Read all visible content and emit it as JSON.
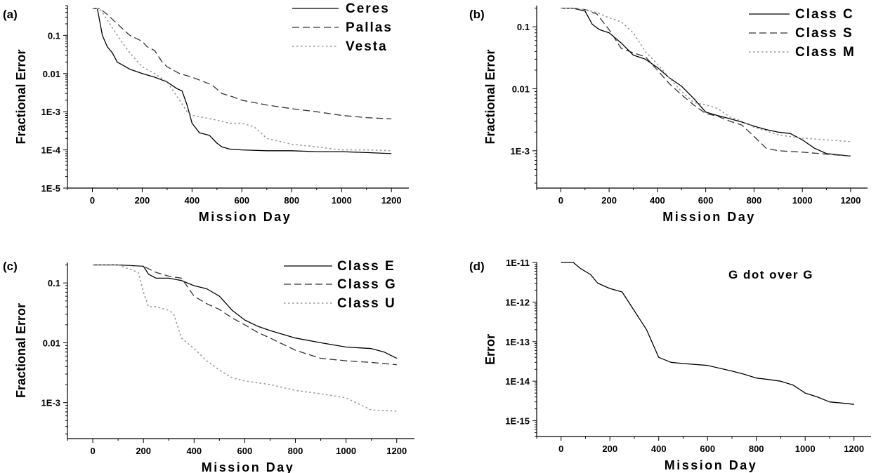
{
  "chart_data": [
    {
      "type": "line",
      "panel_label": "(a)",
      "xlabel": "Mission Day",
      "ylabel": "Fractional Error",
      "xlim": [
        -100,
        1270
      ],
      "ylim": [
        1e-05,
        0.6
      ],
      "yscale": "log",
      "xticks": [
        0,
        200,
        400,
        600,
        800,
        1000,
        1200
      ],
      "xtick_labels": [
        "0",
        "200",
        "400",
        "600",
        "800",
        "1000",
        "1200"
      ],
      "yticks": [
        0.1,
        0.01,
        0.001,
        0.0001,
        1e-05
      ],
      "ytick_labels": [
        "0.1",
        "0.01",
        "1E-3",
        "1E-4",
        "1E-5"
      ],
      "legend_position": "top-right",
      "series": [
        {
          "name": "Ceres",
          "style": "solid",
          "color": "#000000",
          "x": [
            0,
            20,
            40,
            60,
            80,
            100,
            150,
            200,
            250,
            300,
            340,
            360,
            380,
            400,
            430,
            470,
            500,
            520,
            550,
            600,
            700,
            800,
            900,
            1000,
            1100,
            1200
          ],
          "y": [
            0.5,
            0.5,
            0.1,
            0.05,
            0.035,
            0.02,
            0.013,
            0.01,
            0.008,
            0.006,
            0.004,
            0.0035,
            0.0015,
            0.0005,
            0.00028,
            0.00024,
            0.00015,
            0.00012,
            0.000105,
            0.0001,
            9.5e-05,
            9.5e-05,
            9e-05,
            9e-05,
            8.5e-05,
            8e-05
          ]
        },
        {
          "name": "Pallas",
          "style": "dashed",
          "color": "#333333",
          "x": [
            0,
            30,
            60,
            100,
            150,
            200,
            220,
            250,
            280,
            300,
            350,
            400,
            450,
            480,
            520,
            560,
            600,
            700,
            800,
            900,
            1000,
            1100,
            1200
          ],
          "y": [
            0.5,
            0.5,
            0.35,
            0.2,
            0.1,
            0.07,
            0.05,
            0.04,
            0.02,
            0.015,
            0.01,
            0.008,
            0.006,
            0.005,
            0.003,
            0.0025,
            0.002,
            0.0015,
            0.0012,
            0.001,
            0.0008,
            0.0007,
            0.00065
          ]
        },
        {
          "name": "Vesta",
          "style": "dotted",
          "color": "#999999",
          "x": [
            0,
            30,
            60,
            100,
            150,
            200,
            250,
            300,
            350,
            380,
            400,
            450,
            500,
            550,
            600,
            650,
            700,
            800,
            900,
            1000,
            1100,
            1200
          ],
          "y": [
            0.5,
            0.5,
            0.25,
            0.1,
            0.035,
            0.015,
            0.01,
            0.006,
            0.002,
            0.001,
            0.0008,
            0.0007,
            0.0006,
            0.0005,
            0.0005,
            0.0004,
            0.0002,
            0.00014,
            0.00012,
            0.0001,
            0.0001,
            9.5e-05
          ]
        }
      ]
    },
    {
      "type": "line",
      "panel_label": "(b)",
      "xlabel": "Mission Day",
      "ylabel": "Fractional Error",
      "xlim": [
        -100,
        1270
      ],
      "ylim": [
        0.00025,
        0.22
      ],
      "yscale": "log",
      "xticks": [
        0,
        200,
        400,
        600,
        800,
        1000,
        1200
      ],
      "xtick_labels": [
        "0",
        "200",
        "400",
        "600",
        "800",
        "1000",
        "1200"
      ],
      "yticks": [
        0.1,
        0.01,
        0.001
      ],
      "ytick_labels": [
        "0.1",
        "0.01",
        "1E-3"
      ],
      "legend_position": "top-right",
      "series": [
        {
          "name": "Class C",
          "style": "solid",
          "color": "#000000",
          "x": [
            0,
            50,
            100,
            130,
            160,
            200,
            250,
            300,
            350,
            400,
            450,
            500,
            550,
            600,
            650,
            700,
            750,
            800,
            850,
            900,
            950,
            1000,
            1050,
            1100,
            1150,
            1200
          ],
          "y": [
            0.2,
            0.2,
            0.18,
            0.11,
            0.09,
            0.08,
            0.055,
            0.035,
            0.03,
            0.022,
            0.015,
            0.011,
            0.007,
            0.0042,
            0.0037,
            0.0033,
            0.0029,
            0.0025,
            0.0022,
            0.002,
            0.0019,
            0.0015,
            0.0011,
            0.0009,
            0.00086,
            0.00082
          ]
        },
        {
          "name": "Class S",
          "style": "dashed",
          "color": "#333333",
          "x": [
            0,
            50,
            100,
            150,
            200,
            250,
            300,
            350,
            400,
            450,
            500,
            550,
            600,
            650,
            700,
            750,
            800,
            850,
            900,
            1000,
            1100,
            1200
          ],
          "y": [
            0.2,
            0.2,
            0.19,
            0.16,
            0.09,
            0.045,
            0.038,
            0.033,
            0.02,
            0.012,
            0.008,
            0.0055,
            0.004,
            0.0036,
            0.003,
            0.0026,
            0.0017,
            0.0011,
            0.001,
            0.00095,
            0.00088,
            0.00082
          ]
        },
        {
          "name": "Class M",
          "style": "dotted",
          "color": "#999999",
          "x": [
            0,
            50,
            100,
            150,
            200,
            250,
            300,
            350,
            400,
            450,
            500,
            550,
            600,
            650,
            700,
            750,
            800,
            850,
            900,
            1000,
            1100,
            1200
          ],
          "y": [
            0.2,
            0.2,
            0.19,
            0.17,
            0.14,
            0.12,
            0.08,
            0.04,
            0.025,
            0.015,
            0.009,
            0.006,
            0.0055,
            0.0048,
            0.0035,
            0.003,
            0.0024,
            0.0021,
            0.0018,
            0.0016,
            0.0015,
            0.0014
          ]
        }
      ]
    },
    {
      "type": "line",
      "panel_label": "(c)",
      "xlabel": "Mission Day",
      "ylabel": "Fractional Error",
      "xlim": [
        -100,
        1270
      ],
      "ylim": [
        0.00025,
        0.22
      ],
      "yscale": "log",
      "xticks": [
        0,
        200,
        400,
        600,
        800,
        1000,
        1200
      ],
      "xtick_labels": [
        "0",
        "200",
        "400",
        "600",
        "800",
        "1000",
        "1200"
      ],
      "yticks": [
        0.1,
        0.01,
        0.001
      ],
      "ytick_labels": [
        "0.1",
        "0.01",
        "1E-3"
      ],
      "legend_position": "top-right",
      "series": [
        {
          "name": "Class E",
          "style": "solid",
          "color": "#000000",
          "x": [
            0,
            100,
            200,
            220,
            250,
            300,
            350,
            400,
            450,
            500,
            550,
            600,
            650,
            700,
            800,
            900,
            1000,
            1100,
            1150,
            1200
          ],
          "y": [
            0.2,
            0.2,
            0.19,
            0.14,
            0.12,
            0.12,
            0.11,
            0.09,
            0.08,
            0.06,
            0.035,
            0.024,
            0.019,
            0.016,
            0.012,
            0.01,
            0.0085,
            0.008,
            0.007,
            0.0055
          ]
        },
        {
          "name": "Class G",
          "style": "dashed",
          "color": "#333333",
          "x": [
            0,
            100,
            200,
            250,
            300,
            350,
            400,
            450,
            500,
            550,
            600,
            650,
            700,
            800,
            900,
            1000,
            1100,
            1200
          ],
          "y": [
            0.2,
            0.2,
            0.19,
            0.15,
            0.13,
            0.12,
            0.06,
            0.045,
            0.036,
            0.026,
            0.02,
            0.015,
            0.012,
            0.0075,
            0.0055,
            0.005,
            0.0047,
            0.0043
          ]
        },
        {
          "name": "Class U",
          "style": "dotted",
          "color": "#999999",
          "x": [
            0,
            100,
            180,
            200,
            220,
            250,
            300,
            320,
            350,
            400,
            450,
            500,
            550,
            600,
            700,
            800,
            900,
            1000,
            1100,
            1200
          ],
          "y": [
            0.2,
            0.2,
            0.15,
            0.07,
            0.04,
            0.04,
            0.035,
            0.03,
            0.012,
            0.008,
            0.005,
            0.0035,
            0.0026,
            0.0023,
            0.002,
            0.0016,
            0.0014,
            0.0012,
            0.00075,
            0.00072
          ]
        }
      ]
    },
    {
      "type": "line",
      "panel_label": "(d)",
      "annotation": "G dot over G",
      "xlabel": "Mission Day",
      "ylabel": "Error",
      "xlim": [
        -100,
        1270
      ],
      "ylim": [
        4e-16,
        1e-11
      ],
      "yscale": "log",
      "xticks": [
        0,
        200,
        400,
        600,
        800,
        1000,
        1200
      ],
      "xtick_labels": [
        "0",
        "200",
        "400",
        "600",
        "800",
        "1000",
        "1200"
      ],
      "yticks": [
        1e-11,
        1e-12,
        1e-13,
        1e-14,
        1e-15
      ],
      "ytick_labels": [
        "1E-11",
        "1E-12",
        "1E-13",
        "1E-14",
        "1E-15"
      ],
      "series": [
        {
          "style": "solid",
          "color": "#000000",
          "x": [
            0,
            50,
            80,
            120,
            150,
            200,
            250,
            300,
            350,
            400,
            450,
            500,
            600,
            700,
            750,
            800,
            850,
            900,
            950,
            1000,
            1050,
            1100,
            1150,
            1200
          ],
          "y": [
            1e-11,
            1e-11,
            7e-12,
            5e-12,
            3e-12,
            2.2e-12,
            1.8e-12,
            6e-13,
            2e-13,
            4e-14,
            3e-14,
            2.8e-14,
            2.5e-14,
            1.8e-14,
            1.5e-14,
            1.2e-14,
            1.1e-14,
            1e-14,
            8e-15,
            5e-15,
            4e-15,
            3e-15,
            2.8e-15,
            2.6e-15
          ]
        }
      ]
    }
  ]
}
